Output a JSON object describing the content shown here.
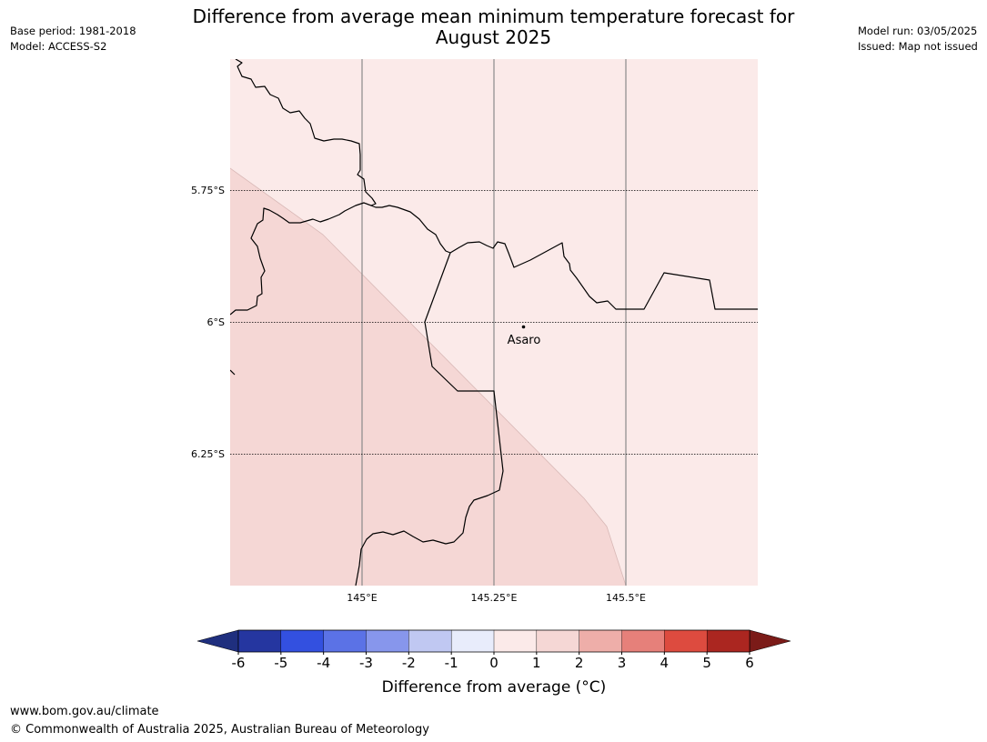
{
  "header": {
    "title_line1": "Difference from average mean minimum temperature forecast for",
    "title_line2": "August 2025",
    "base_period": "Base period: 1981-2018",
    "model": "Model: ACCESS-S2",
    "model_run": "Model run: 03/05/2025",
    "issued": "Issued: Map not issued"
  },
  "map": {
    "lat_labels": [
      "5.75°S",
      "6°S",
      "6.25°S"
    ],
    "lon_labels": [
      "145°E",
      "145.25°E",
      "145.5°E"
    ],
    "town": {
      "name": "Asaro"
    },
    "zones": [
      {
        "range": "0 to 1",
        "color": "#fbeae9"
      },
      {
        "range": "1 to 2",
        "color": "#f5d7d5"
      }
    ]
  },
  "colorbar": {
    "label": "Difference from average ($^\\circ$C)",
    "label_display": "Difference from average (°C)",
    "ticks": [
      "-6",
      "-5",
      "-4",
      "-3",
      "-2",
      "-1",
      "0",
      "1",
      "2",
      "3",
      "4",
      "5",
      "6"
    ],
    "colors": [
      "#2536a0",
      "#3350e0",
      "#5b72e6",
      "#8796ec",
      "#c0c8f2",
      "#e8ecfb",
      "#fbeae9",
      "#f5d7d5",
      "#eeaea9",
      "#e6807a",
      "#dd4b3f",
      "#ab2620"
    ],
    "under_color": "#1f2f7e",
    "over_color": "#7b1b18"
  },
  "footer": {
    "url": "www.bom.gov.au/climate",
    "copyright": "© Commonwealth of Australia 2025, Australian Bureau of Meteorology"
  }
}
